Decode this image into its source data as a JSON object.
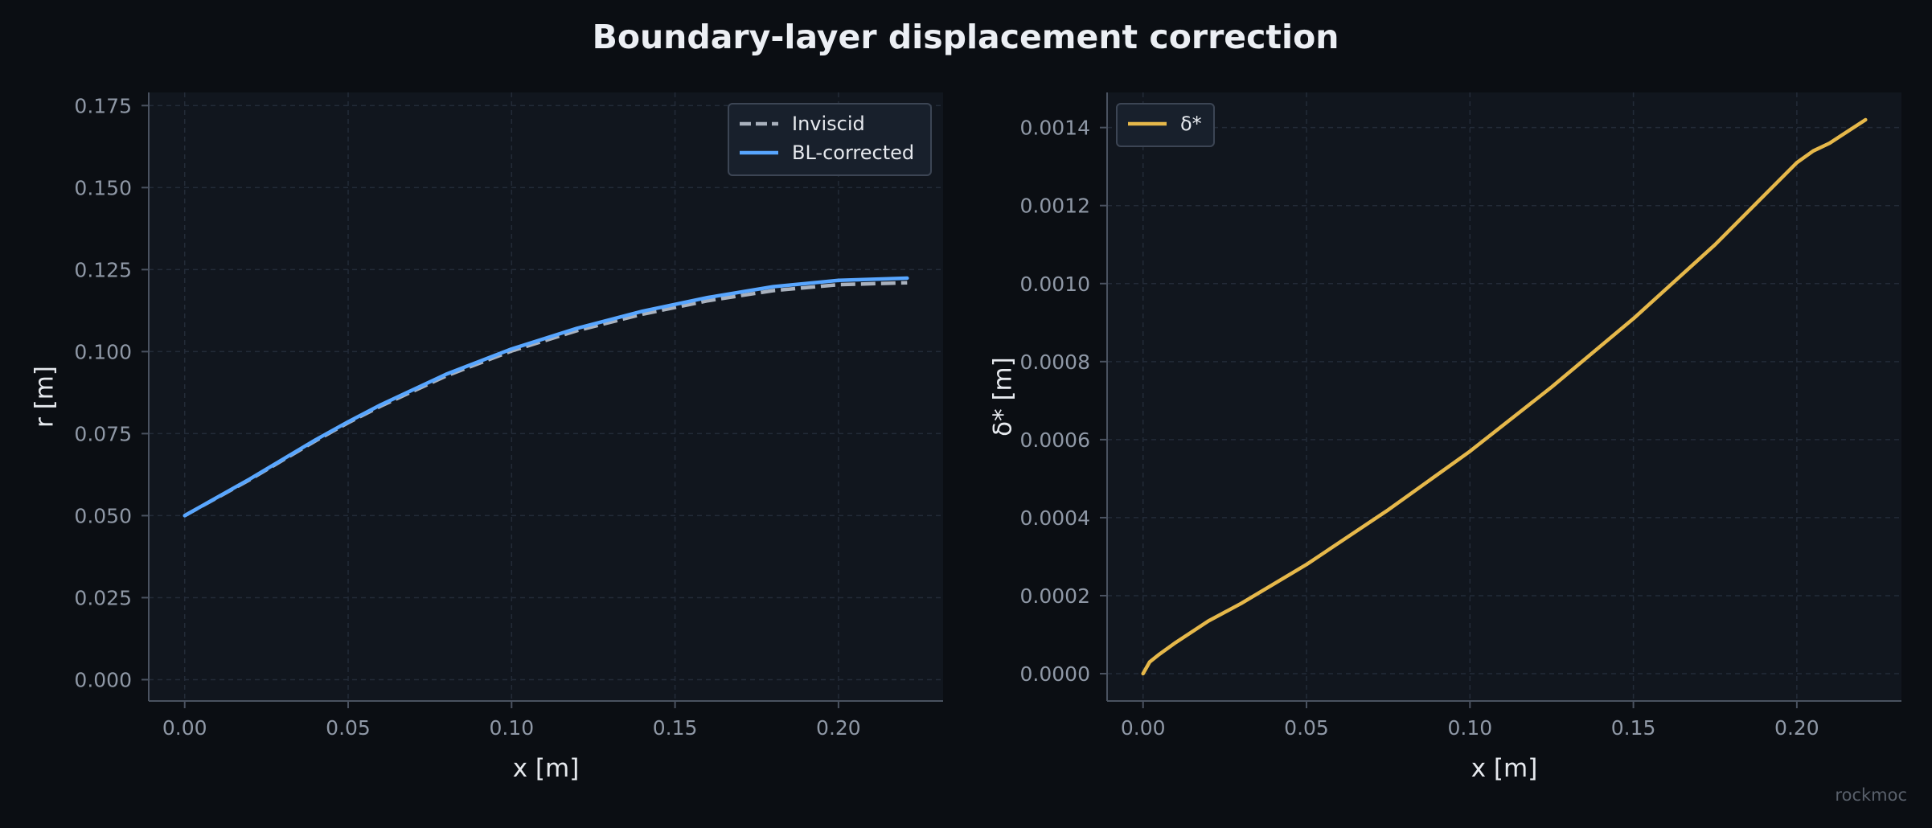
{
  "figure": {
    "title": "Boundary-layer displacement correction",
    "watermark": "rockmoc",
    "background": "#0b0e13",
    "panel_background": "#11161e"
  },
  "chart_data": [
    {
      "type": "line",
      "xlabel": "x [m]",
      "ylabel": "r [m]",
      "xlim": [
        -0.011,
        0.232
      ],
      "ylim": [
        -0.0065,
        0.179
      ],
      "xticks": [
        "0.00",
        "0.05",
        "0.10",
        "0.15",
        "0.20"
      ],
      "xtick_values": [
        0,
        0.05,
        0.1,
        0.15,
        0.2
      ],
      "yticks": [
        "0.000",
        "0.025",
        "0.050",
        "0.075",
        "0.100",
        "0.125",
        "0.150",
        "0.175"
      ],
      "ytick_values": [
        0,
        0.025,
        0.05,
        0.075,
        0.1,
        0.125,
        0.15,
        0.175
      ],
      "grid": true,
      "legend_position": "upper right",
      "series": [
        {
          "name": "Inviscid",
          "style": "dashed",
          "color": "#a9b1bd",
          "x": [
            0,
            0.02,
            0.04,
            0.05,
            0.06,
            0.08,
            0.1,
            0.12,
            0.14,
            0.16,
            0.18,
            0.2,
            0.221
          ],
          "y": [
            0.05,
            0.061,
            0.0728,
            0.0783,
            0.0834,
            0.0926,
            0.1002,
            0.1064,
            0.1114,
            0.1155,
            0.1186,
            0.1204,
            0.121
          ]
        },
        {
          "name": "BL-corrected",
          "style": "solid",
          "color": "#58a6ff",
          "x": [
            0,
            0.02,
            0.04,
            0.05,
            0.06,
            0.08,
            0.1,
            0.12,
            0.14,
            0.16,
            0.18,
            0.2,
            0.221
          ],
          "y": [
            0.05,
            0.0612,
            0.0731,
            0.0786,
            0.0838,
            0.0931,
            0.1008,
            0.1071,
            0.1123,
            0.1165,
            0.1198,
            0.1217,
            0.1224
          ]
        }
      ]
    },
    {
      "type": "line",
      "xlabel": "x [m]",
      "ylabel": "δ* [m]",
      "xlim": [
        -0.011,
        0.232
      ],
      "ylim": [
        -7e-05,
        0.00149
      ],
      "xticks": [
        "0.00",
        "0.05",
        "0.10",
        "0.15",
        "0.20"
      ],
      "xtick_values": [
        0,
        0.05,
        0.1,
        0.15,
        0.2
      ],
      "yticks": [
        "0.0000",
        "0.0002",
        "0.0004",
        "0.0006",
        "0.0008",
        "0.0010",
        "0.0012",
        "0.0014"
      ],
      "ytick_values": [
        0,
        0.0002,
        0.0004,
        0.0006,
        0.0008,
        0.001,
        0.0012,
        0.0014
      ],
      "grid": true,
      "legend_position": "upper left",
      "series": [
        {
          "name": "δ*",
          "style": "solid",
          "color": "#e6b84a",
          "x": [
            0,
            0.002,
            0.005,
            0.01,
            0.02,
            0.03,
            0.05,
            0.075,
            0.1,
            0.125,
            0.15,
            0.175,
            0.2,
            0.205,
            0.21,
            0.221
          ],
          "y": [
            0,
            3e-05,
            5e-05,
            8e-05,
            0.000135,
            0.00018,
            0.00028,
            0.00042,
            0.00057,
            0.000735,
            0.00091,
            0.0011,
            0.00131,
            0.00134,
            0.00136,
            0.00142
          ]
        }
      ]
    }
  ]
}
